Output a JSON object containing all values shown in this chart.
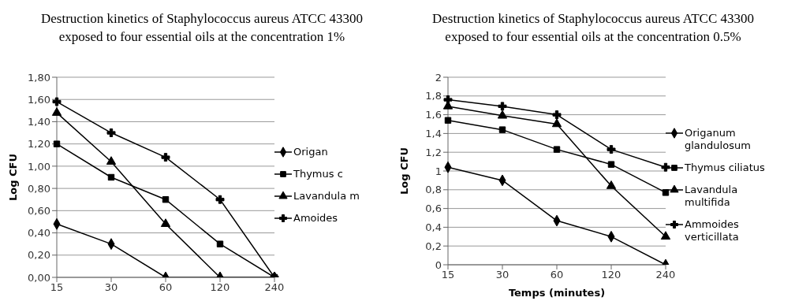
{
  "chart_data": [
    {
      "type": "line",
      "title": "Destruction kinetics of Staphylococcus aureus ATCC 43300 exposed to four essential oils at the concentration 1%",
      "ylabel": "Log CFU",
      "categories": [
        "15",
        "30",
        "60",
        "120",
        "240"
      ],
      "series": [
        {
          "name": "Origan",
          "color": "#000000",
          "marker": "diamond",
          "values": [
            0.48,
            0.3,
            0,
            0,
            0
          ]
        },
        {
          "name": "Thymus c",
          "color": "#000000",
          "marker": "square",
          "values": [
            1.2,
            0.9,
            0.7,
            0.3,
            0
          ]
        },
        {
          "name": "Lavandula m",
          "color": "#000000",
          "marker": "triangle",
          "values": [
            1.48,
            1.04,
            0.48,
            0,
            0
          ]
        },
        {
          "name": "Amoides",
          "color": "#000000",
          "marker": "cross",
          "values": [
            1.58,
            1.3,
            1.08,
            0.7,
            0
          ]
        }
      ],
      "ylim": [
        0,
        1.8
      ],
      "yticks": [
        {
          "value": 0,
          "label": "0,00"
        },
        {
          "value": 0.2,
          "label": "0,20"
        },
        {
          "value": 0.4,
          "label": "0,40"
        },
        {
          "value": 0.6,
          "label": "0,60"
        },
        {
          "value": 0.8,
          "label": "0,80"
        },
        {
          "value": 1.0,
          "label": "1,00"
        },
        {
          "value": 1.2,
          "label": "1,20"
        },
        {
          "value": 1.4,
          "label": "1,40"
        },
        {
          "value": 1.6,
          "label": "1,60"
        },
        {
          "value": 1.8,
          "label": "1,80"
        }
      ],
      "grid": "y",
      "legend": "right",
      "line_style": "solid"
    },
    {
      "type": "line",
      "title": "Destruction kinetics of Staphylococcus aureus ATCC 43300 exposed to four essential oils at the concentration 0.5%",
      "xlabel": "Temps (minutes)",
      "ylabel": "Log CFU",
      "categories": [
        "15",
        "30",
        "60",
        "120",
        "240"
      ],
      "series": [
        {
          "name": "Origanum glandulosum",
          "color": "#000000",
          "marker": "diamond",
          "values": [
            1.04,
            0.9,
            0.47,
            0.3,
            0
          ]
        },
        {
          "name": "Thymus ciliatus",
          "color": "#000000",
          "marker": "square",
          "values": [
            1.54,
            1.44,
            1.23,
            1.07,
            0.77
          ]
        },
        {
          "name": "Lavandula multifida",
          "color": "#000000",
          "marker": "triangle",
          "values": [
            1.69,
            1.59,
            1.5,
            0.84,
            0.3
          ]
        },
        {
          "name": "Ammoides verticillata",
          "color": "#000000",
          "marker": "cross",
          "values": [
            1.76,
            1.69,
            1.6,
            1.23,
            1.04
          ]
        }
      ],
      "ylim": [
        0,
        2
      ],
      "yticks": [
        0,
        {
          "value": 0.2,
          "label": "0,2"
        },
        {
          "value": 0.4,
          "label": "0,4"
        },
        {
          "value": 0.6,
          "label": "0,6"
        },
        {
          "value": 0.8,
          "label": "0,8"
        },
        1,
        {
          "value": 1.2,
          "label": "1,2"
        },
        {
          "value": 1.4,
          "label": "1,4"
        },
        {
          "value": 1.6,
          "label": "1,6"
        },
        {
          "value": 1.8,
          "label": "1,8"
        },
        2
      ],
      "grid": "y",
      "legend": "right",
      "line_style": "solid"
    }
  ]
}
